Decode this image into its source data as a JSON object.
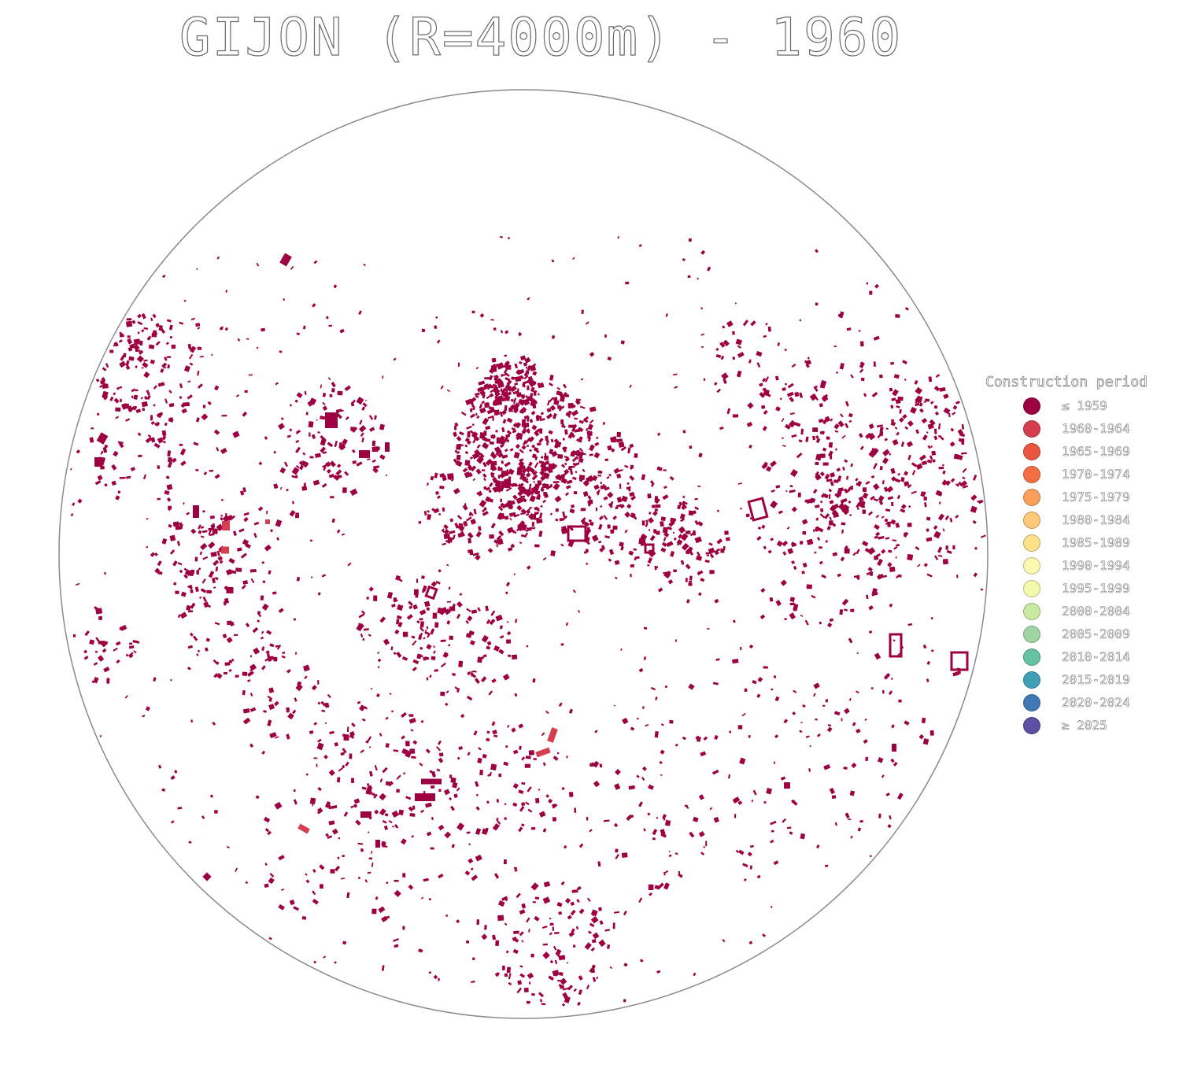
{
  "title": "GIJON (R=4000m) - 1960",
  "legend": {
    "title": "Construction period",
    "items": [
      {
        "label": "≤ 1959",
        "color": "#9e0142"
      },
      {
        "label": "1960-1964",
        "color": "#d53e4f"
      },
      {
        "label": "1965-1969",
        "color": "#e9553f"
      },
      {
        "label": "1970-1974",
        "color": "#f46d43"
      },
      {
        "label": "1975-1979",
        "color": "#fba05b"
      },
      {
        "label": "1980-1984",
        "color": "#fdc877"
      },
      {
        "label": "1985-1989",
        "color": "#fee08b"
      },
      {
        "label": "1990-1994",
        "color": "#fbf8b0"
      },
      {
        "label": "1995-1999",
        "color": "#f3faad"
      },
      {
        "label": "2000-2004",
        "color": "#c8e9a0"
      },
      {
        "label": "2005-2009",
        "color": "#9dd6a4"
      },
      {
        "label": "2010-2014",
        "color": "#66c2a5"
      },
      {
        "label": "2015-2019",
        "color": "#3f9fb5"
      },
      {
        "label": "2020-2024",
        "color": "#3f78b6"
      },
      {
        "label": "≥ 2025",
        "color": "#5e4fa2"
      }
    ]
  },
  "map": {
    "boundary_color": "#888888",
    "building_color": "#9e0142",
    "secondary_building_color": "#d53e4f"
  }
}
